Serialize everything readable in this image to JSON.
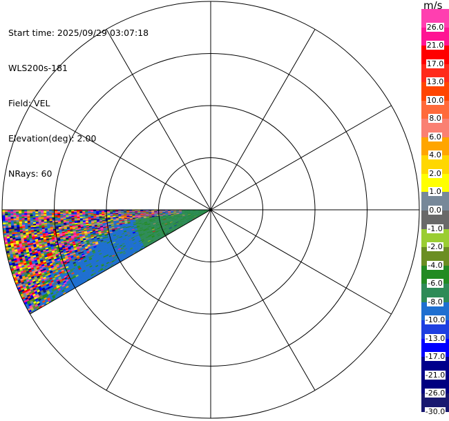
{
  "header": {
    "start_time": "Start time: 2025/09/29 03:07:18",
    "instrument": "WLS200s-181",
    "field": "Field: VEL",
    "elevation": "Elevation(deg): 2.00",
    "nrays": "NRays: 60"
  },
  "chart_data": {
    "type": "heatmap",
    "projection": "polar-ppi",
    "field": "VEL",
    "units": "m/s",
    "rings": 4,
    "spokes_deg_step": 30,
    "sector": {
      "from_azimuth_deg": 240,
      "to_azimuth_deg": 270,
      "nrays": 60
    },
    "colorbar": {
      "unit_label": "m/s",
      "ticks": [
        "26.0",
        "21.0",
        "17.0",
        "13.0",
        "10.0",
        "8.0",
        "6.0",
        "4.0",
        "2.0",
        "1.0",
        "0.0",
        "-1.0",
        "-2.0",
        "-4.0",
        "-6.0",
        "-8.0",
        "-10.0",
        "-13.0",
        "-17.0",
        "-21.0",
        "-26.0",
        "-30.0"
      ],
      "colors": [
        "#ff3fb0",
        "#ff1493",
        "#ff0000",
        "#ff2a1a",
        "#ff4500",
        "#ff6a3a",
        "#fa8072",
        "#ffa500",
        "#ffd700",
        "#ffff00",
        "#778899",
        "#696969",
        "#9acd32",
        "#6b8e23",
        "#228b22",
        "#2e8b57",
        "#1e6fd0",
        "#1e3fe0",
        "#0000ff",
        "#00008b",
        "#000080",
        "#191970"
      ]
    },
    "regions": [
      {
        "name": "noise",
        "description_values": "random mix across full color scale"
      },
      {
        "name": "flow",
        "values": [
          "-10.0",
          "-8.0",
          "-6.0",
          "-13.0"
        ]
      }
    ]
  }
}
